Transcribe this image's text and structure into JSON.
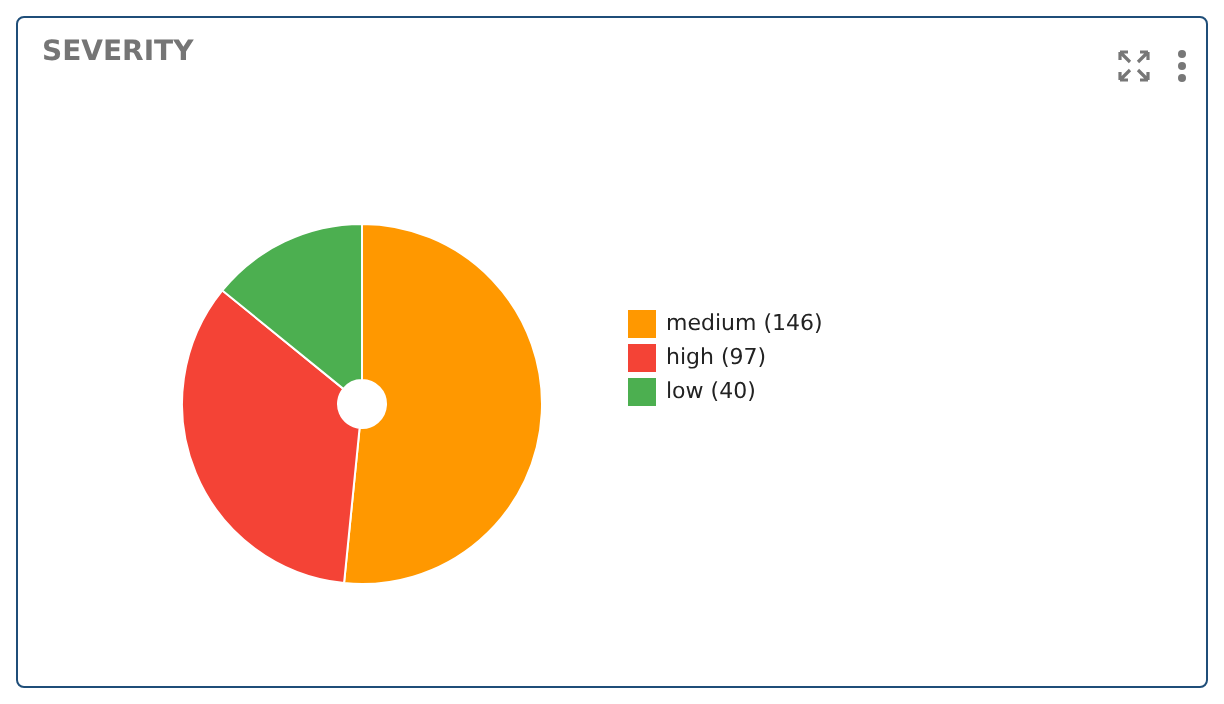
{
  "chart_data": {
    "type": "donut",
    "title": "SEVERITY",
    "categories": [
      "medium (146)",
      "high (97)",
      "low (40)"
    ],
    "values": [
      146,
      97,
      40
    ],
    "colors": [
      "#ff9800",
      "#f44336",
      "#4caf50"
    ],
    "legend": "right"
  }
}
